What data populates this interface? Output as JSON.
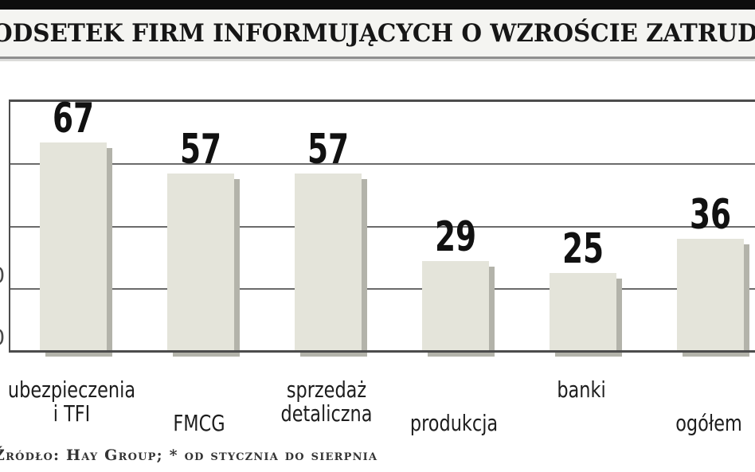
{
  "header": {
    "title": "Odsetek firm informujących o wzroście zatrudnienia",
    "title_display": "ODSETEK FIRM INFORMUJĄCYCH O WZROŚCIE ZATRUDNIENIA"
  },
  "chart_data": {
    "type": "bar",
    "title": "Odsetek firm informujących o wzroście zatrudnienia",
    "categories": [
      "ubezpieczenia i TFI",
      "FMCG",
      "sprzedaż detaliczna",
      "produkcja",
      "banki",
      "ogółem"
    ],
    "category_label_lines": [
      [
        "ubezpieczenia",
        "i TFI"
      ],
      [
        "FMCG"
      ],
      [
        "sprzedaż",
        "detaliczna"
      ],
      [
        "produkcja"
      ],
      [
        "banki"
      ],
      [
        "ogółem"
      ]
    ],
    "values": [
      67,
      57,
      57,
      29,
      25,
      36
    ],
    "xlabel": "",
    "ylabel": "",
    "ylim": [
      0,
      80
    ],
    "gridline_values": [
      20,
      40,
      60
    ],
    "grid": true,
    "legend_position": "none",
    "y_ticks_partially_visible": [
      {
        "visible_fragment": "0",
        "at_value": 20
      },
      {
        "visible_fragment": "0",
        "at_value": 0
      }
    ]
  },
  "footer": {
    "source_note": "Źródło: Hay Group; * od stycznia do sierpnia"
  },
  "colors": {
    "top_bar": "#0d0d0d",
    "title_band_bg": "#f4f4f1",
    "bar_fill": "#e4e4da",
    "bar_shadow": "#b3b3aa",
    "gridline": "#6b6b6b",
    "axis": "#4c4c4c",
    "title_text": "#161616",
    "label_text": "#1d1d1d",
    "source_text": "#343434"
  }
}
